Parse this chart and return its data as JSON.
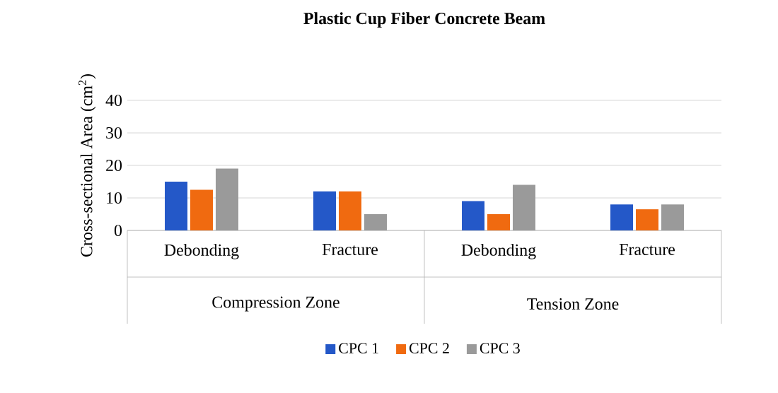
{
  "chart_data": {
    "type": "bar",
    "title": "**Plastic Cup Fiber Concrete Beam**",
    "ylabel": "Cross-sectional Area  (cm$^{2}$)",
    "categories": [
      "Debonding",
      "Fracture",
      "Debonding",
      "Fracture"
    ],
    "annotations": [
      "Compression Zone",
      "Tension Zone"
    ],
    "series": [
      {
        "name": "CPC 1",
        "color": "#2458c8",
        "values": [
          15,
          12,
          9,
          8
        ]
      },
      {
        "name": "CPC 2",
        "color": "#f06a10",
        "values": [
          12.5,
          12,
          5,
          6.5
        ]
      },
      {
        "name": "CPC 3",
        "color": "#9a9a9a",
        "values": [
          19,
          5,
          14,
          8
        ]
      }
    ],
    "ylim": [
      0,
      40
    ],
    "yticks": [
      0,
      10,
      20,
      30,
      40
    ],
    "grid": "y",
    "legend": "bottom"
  }
}
